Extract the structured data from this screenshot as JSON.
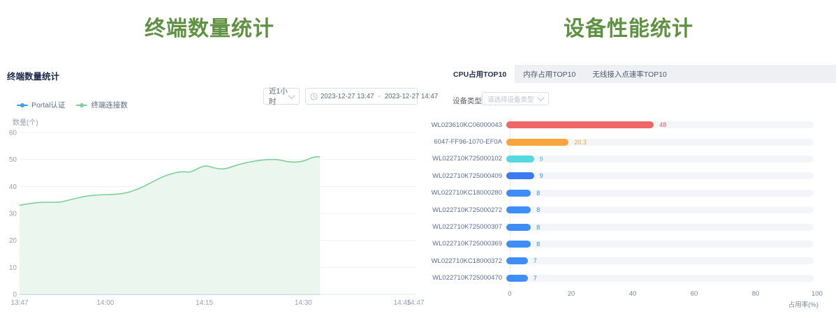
{
  "left_panel": {
    "page_title": "终端数量统计",
    "card_title": "终端数量统计",
    "time_range_select": {
      "value": "近1小时"
    },
    "date_range": {
      "start": "2023-12-27 13:47",
      "separator": "-",
      "end": "2023-12-27 14:47"
    },
    "legend": [
      {
        "label": "Portal认证",
        "color": "#3d9bf0"
      },
      {
        "label": "终端连接数",
        "color": "#7ed09a"
      }
    ]
  },
  "right_panel": {
    "page_title": "设备性能统计",
    "tabs": [
      {
        "label": "CPU占用TOP10",
        "active": true
      },
      {
        "label": "内存占用TOP10",
        "active": false
      },
      {
        "label": "无线接入点速率TOP10",
        "active": false
      }
    ],
    "device_type_label": "设备类型",
    "device_type_placeholder": "请选择设备类型"
  },
  "icons": {
    "date_range": "clock-icon",
    "selects": "chevron-down-icon"
  },
  "colors": {
    "title_green": "#5e9142",
    "header_text": "#1b2a4a",
    "axis_text": "#98a2b3",
    "grid_line": "#eef1f6",
    "tab_strip_bg": "#eef0f4",
    "input_border": "#dcdfe6",
    "placeholder_text": "#c0c4cc"
  },
  "chart_data": [
    {
      "type": "area",
      "title": "终端数量统计",
      "xlabel": "",
      "ylabel": "数量(个)",
      "ylim": [
        0,
        60
      ],
      "y_ticks": [
        0,
        10,
        20,
        30,
        40,
        50,
        60
      ],
      "x_range_minutes": [
        0,
        60
      ],
      "x_ticks": [
        {
          "label": "13:47",
          "minute": 0
        },
        {
          "label": "14:00",
          "minute": 13
        },
        {
          "label": "14:15",
          "minute": 28
        },
        {
          "label": "14:30",
          "minute": 43
        },
        {
          "label": "14:45",
          "minute": 58
        },
        {
          "label": "14:47",
          "minute": 60
        }
      ],
      "grid": true,
      "legend_position": "top-left",
      "series": [
        {
          "name": "Portal认证",
          "color": "#3d9bf0",
          "points": [
            [
              0,
              0
            ],
            [
              45.5,
              0
            ]
          ]
        },
        {
          "name": "终端连接数",
          "color": "#7ed09a",
          "area_color": "#eaf6ee",
          "points": [
            [
              0,
              33
            ],
            [
              2,
              33.9
            ],
            [
              4,
              34.2
            ],
            [
              6,
              34
            ],
            [
              8,
              35.3
            ],
            [
              10,
              36.4
            ],
            [
              12,
              36.9
            ],
            [
              14,
              37
            ],
            [
              16,
              37.4
            ],
            [
              18,
              39
            ],
            [
              20,
              41.5
            ],
            [
              22,
              44
            ],
            [
              24,
              45.3
            ],
            [
              25,
              45.5
            ],
            [
              26,
              45.2
            ],
            [
              28,
              48
            ],
            [
              29.5,
              46.8
            ],
            [
              31,
              46.3
            ],
            [
              33,
              48
            ],
            [
              35,
              49.2
            ],
            [
              37,
              49.9
            ],
            [
              39,
              50.1
            ],
            [
              41,
              48.9
            ],
            [
              43,
              49.2
            ],
            [
              44.5,
              51
            ],
            [
              45.5,
              51
            ]
          ]
        }
      ]
    },
    {
      "type": "bar",
      "orientation": "horizontal",
      "categories": [
        "WL023610KC06000043",
        "6047-FF96-1070-EF0A",
        "WL022710K725000102",
        "WL022710K725000409",
        "WL022710KC18000280",
        "WL022710K725000272",
        "WL022710K725000307",
        "WL022710K725000369",
        "WL022710KC18000372",
        "WL022710K725000470"
      ],
      "values": [
        48,
        20.3,
        9,
        9,
        8,
        8,
        8,
        8,
        7,
        7
      ],
      "bar_colors": [
        "#ee6666",
        "#f9a43f",
        "#54d8e2",
        "#3c79f2",
        "#3f8df6",
        "#3f8df6",
        "#3f8df6",
        "#3f8df6",
        "#3f8df6",
        "#3f8df6"
      ],
      "value_colors": [
        "#f0575f",
        "#fa9e3d",
        "#41b7e8",
        "#3d8af2",
        "#3d8af2",
        "#3d8af2",
        "#3d8af2",
        "#3d8af2",
        "#3d8af2",
        "#3d8af2"
      ],
      "xlabel": "占用率(%)",
      "xlim": [
        0,
        100
      ],
      "x_ticks": [
        0,
        20,
        40,
        60,
        80,
        100
      ],
      "track_color": "#f3f5f9",
      "legend_position": "none"
    }
  ]
}
